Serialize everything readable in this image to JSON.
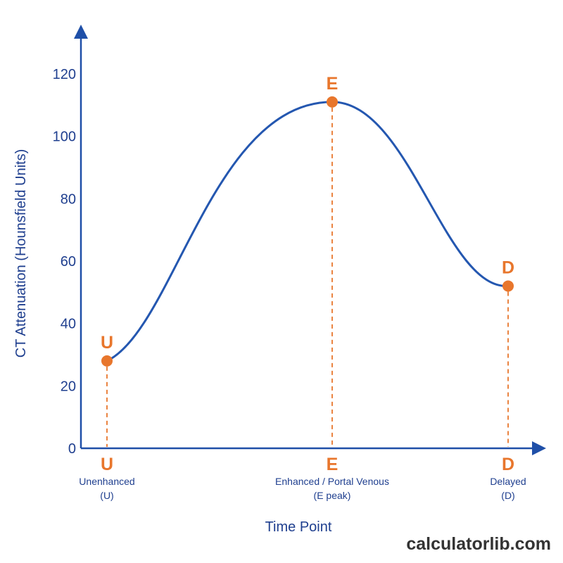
{
  "chart_data": {
    "type": "line",
    "title": "",
    "ylabel": "CT Attenuation (Hounsfield Units)",
    "xlabel": "Time Point",
    "ylim": [
      0,
      130
    ],
    "yticks": [
      0,
      20,
      40,
      60,
      80,
      100,
      120
    ],
    "categories": [
      {
        "letter": "U",
        "line1": "Unenhanced",
        "line2": "(U)"
      },
      {
        "letter": "E",
        "line1": "Enhanced / Portal Venous",
        "line2": "(E peak)"
      },
      {
        "letter": "D",
        "line1": "Delayed",
        "line2": "(D)"
      }
    ],
    "points": [
      {
        "label": "U",
        "value": 28
      },
      {
        "label": "E",
        "value": 111
      },
      {
        "label": "D",
        "value": 52
      }
    ],
    "grid": false,
    "colors": {
      "axis": "#1f4fa8",
      "line": "#2457b0",
      "point": "#e8762c",
      "text": "#1f3f8f"
    }
  },
  "watermark": "calculatorlib.com"
}
